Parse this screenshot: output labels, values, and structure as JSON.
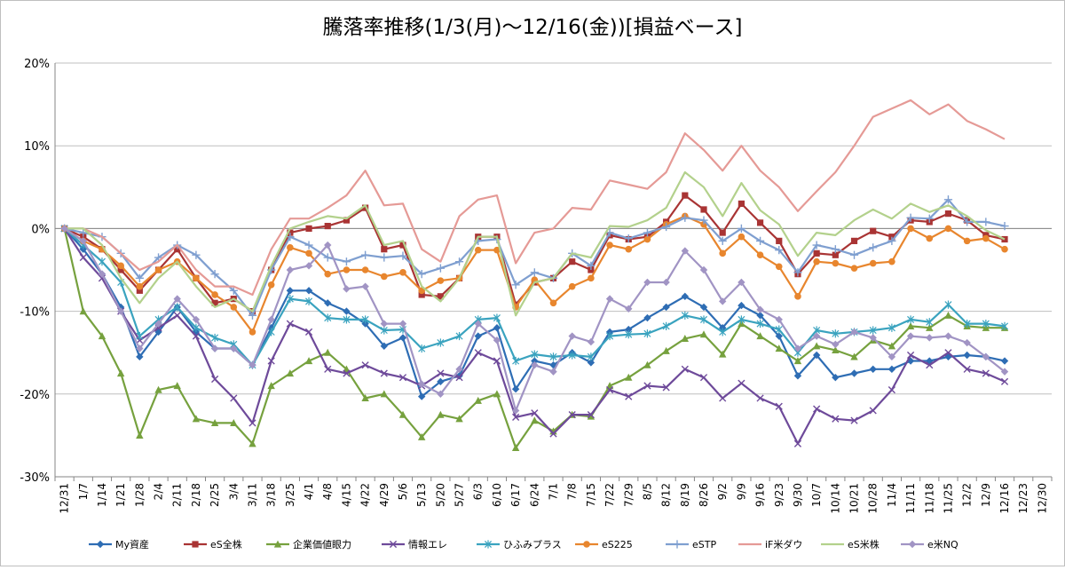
{
  "chart_data": {
    "type": "line",
    "title": "騰落率推移(1/3(月)～12/16(金))[損益ベース]",
    "xlabel": "",
    "ylabel": "",
    "ylim": [
      -30,
      20
    ],
    "yticks": [
      "20%",
      "10%",
      "0%",
      "-10%",
      "-20%",
      "-30%"
    ],
    "ytick_values": [
      20,
      10,
      0,
      -10,
      -20,
      -30
    ],
    "grid": "horizontal",
    "legend_position": "bottom",
    "x_ticks": [
      "12/31",
      "1/7",
      "1/14",
      "1/21",
      "1/28",
      "2/4",
      "2/11",
      "2/18",
      "2/25",
      "3/4",
      "3/11",
      "3/18",
      "3/25",
      "4/1",
      "4/8",
      "4/15",
      "4/22",
      "4/29",
      "5/6",
      "5/13",
      "5/20",
      "5/27",
      "6/3",
      "6/10",
      "6/17",
      "6/24",
      "7/1",
      "7/8",
      "7/15",
      "7/22",
      "7/29",
      "8/5",
      "8/12",
      "8/19",
      "8/26",
      "9/2",
      "9/9",
      "9/16",
      "9/23",
      "9/30",
      "10/7",
      "10/14",
      "10/21",
      "10/28",
      "11/4",
      "11/11",
      "11/18",
      "11/25",
      "12/2",
      "12/9",
      "12/16",
      "12/23",
      "12/30"
    ],
    "series": [
      {
        "name": "My資産",
        "color": "#2E6DB4",
        "marker": "diamond",
        "values": [
          0,
          -2.5,
          -5.5,
          -9.5,
          -15.5,
          -12.5,
          -9.5,
          -12.5,
          -14.5,
          -14.5,
          -16.5,
          -12,
          -7.5,
          -7.5,
          -9,
          -10,
          -11.5,
          -14.2,
          -13.2,
          -20.3,
          -18.5,
          -17.8,
          -13,
          -12,
          -19.4,
          -16,
          -16.5,
          -15,
          -16.2,
          -12.5,
          -12.2,
          -10.8,
          -9.5,
          -8.2,
          -9.5,
          -12,
          -9.3,
          -10.5,
          -13,
          -17.8,
          -15.3,
          -18,
          -17.5,
          -17,
          -17,
          -16,
          -16,
          -15.5,
          -15.3,
          -15.5,
          -16
        ]
      },
      {
        "name": "eS全株",
        "color": "#A93434",
        "marker": "square",
        "values": [
          0,
          -1,
          -2.5,
          -5,
          -7.5,
          -5,
          -2.5,
          -6,
          -9,
          -8.5,
          -10,
          -5,
          -0.5,
          0,
          0.3,
          1,
          2.5,
          -2.5,
          -2,
          -8,
          -8.2,
          -6,
          -1,
          -1,
          -9.2,
          -6.5,
          -6,
          -4,
          -5,
          -0.8,
          -1.3,
          -1,
          0.8,
          4,
          2.3,
          -0.5,
          3,
          0.7,
          -1.5,
          -5.5,
          -3,
          -3.2,
          -1.5,
          -0.3,
          -1,
          1,
          0.8,
          1.8,
          1,
          -0.8,
          -1.3
        ]
      },
      {
        "name": "企業価値眼力",
        "color": "#76A13E",
        "marker": "triangle",
        "values": [
          0,
          -10,
          -13,
          -17.5,
          -25,
          -19.5,
          -19,
          -23,
          -23.5,
          -23.5,
          -26,
          -19,
          -17.5,
          -16,
          -15,
          -17,
          -20.5,
          -20,
          -22.5,
          -25.2,
          -22.5,
          -23,
          -20.8,
          -20,
          -26.5,
          -23.2,
          -24.5,
          -22.5,
          -22.7,
          -19,
          -18,
          -16.5,
          -14.8,
          -13.3,
          -12.8,
          -15.2,
          -11.5,
          -13,
          -14.5,
          -16,
          -14.2,
          -14.7,
          -15.5,
          -13.5,
          -14.2,
          -11.8,
          -12,
          -10.5,
          -11.8,
          -12,
          -12
        ]
      },
      {
        "name": "情報エレ",
        "color": "#6E4A9A",
        "marker": "x",
        "values": [
          0,
          -3.5,
          -6,
          -10,
          -13.5,
          -12,
          -10.5,
          -13,
          -18.2,
          -20.5,
          -23.5,
          -16,
          -11.5,
          -12.5,
          -17,
          -17.5,
          -16.5,
          -17.5,
          -18,
          -19,
          -17.5,
          -18,
          -15,
          -16,
          -22.8,
          -22.3,
          -24.8,
          -22.5,
          -22.5,
          -19.5,
          -20.3,
          -19,
          -19.2,
          -17,
          -18,
          -20.5,
          -18.7,
          -20.5,
          -21.5,
          -26,
          -21.8,
          -23,
          -23.2,
          -22,
          -19.5,
          -15.3,
          -16.5,
          -15,
          -17,
          -17.5,
          -18.5
        ]
      },
      {
        "name": "ひふみプラス",
        "color": "#3AA3BF",
        "marker": "star",
        "values": [
          0,
          -2,
          -4,
          -6.5,
          -13,
          -11,
          -9.5,
          -12,
          -13.2,
          -14,
          -16.5,
          -12.5,
          -8.5,
          -8.8,
          -10.8,
          -11,
          -11,
          -12.3,
          -12.2,
          -14.5,
          -13.8,
          -13,
          -11,
          -10.8,
          -16,
          -15.2,
          -15.5,
          -15.3,
          -15.5,
          -13,
          -12.8,
          -12.7,
          -11.8,
          -10.5,
          -11,
          -12.5,
          -11,
          -11.5,
          -12.2,
          -15,
          -12.3,
          -12.7,
          -12.5,
          -12.3,
          -12,
          -11,
          -11.3,
          -9.2,
          -11.5,
          -11.5,
          -11.8
        ]
      },
      {
        "name": "eS225",
        "color": "#E8862E",
        "marker": "circle",
        "values": [
          0,
          -1.5,
          -2.5,
          -4.5,
          -7,
          -5,
          -4,
          -6,
          -8,
          -9.5,
          -12.5,
          -6.8,
          -2.3,
          -3,
          -5.5,
          -5,
          -5,
          -5.8,
          -5.3,
          -7.5,
          -6.3,
          -6,
          -2.6,
          -2.6,
          -9.5,
          -6.2,
          -9,
          -7,
          -6,
          -2,
          -2.5,
          -1.3,
          0.5,
          1.5,
          0.5,
          -3,
          -1,
          -3.2,
          -4.6,
          -8.2,
          -4,
          -4.2,
          -4.8,
          -4.2,
          -4,
          0,
          -1.2,
          0,
          -1.5,
          -1.2,
          -2.5
        ]
      },
      {
        "name": "eSTP",
        "color": "#7F9FD0",
        "marker": "plus",
        "values": [
          0,
          -0.5,
          -1,
          -3,
          -6,
          -3.5,
          -2,
          -3.2,
          -5.5,
          -7.5,
          -10.5,
          -5,
          -1,
          -2,
          -3.5,
          -4,
          -3.2,
          -3.5,
          -3.3,
          -5.5,
          -4.8,
          -4,
          -1.5,
          -1.3,
          -6.8,
          -5.3,
          -6,
          -3,
          -4.5,
          -0.5,
          -1.2,
          -0.5,
          0.2,
          1.3,
          1,
          -1.5,
          0,
          -1.5,
          -2.6,
          -5.3,
          -2,
          -2.5,
          -3.2,
          -2.3,
          -1.5,
          1.3,
          1.2,
          3.5,
          0.8,
          0.8,
          0.3
        ]
      },
      {
        "name": "iF米ダウ",
        "color": "#E59A96",
        "marker": "none",
        "values": [
          0,
          0,
          -1,
          -3,
          -5,
          -4,
          -2,
          -5,
          -7,
          -7,
          -8,
          -2.5,
          1.2,
          1.2,
          2.5,
          4,
          7,
          2.8,
          3,
          -2.5,
          -4,
          1.5,
          3.5,
          4,
          -4.2,
          -0.5,
          0,
          2.5,
          2.3,
          5.8,
          5.3,
          4.8,
          6.8,
          11.5,
          9.5,
          7,
          10,
          7,
          5,
          2.1,
          4.5,
          6.8,
          10,
          13.5,
          14.5,
          15.5,
          13.8,
          15,
          13,
          12,
          10.8
        ]
      },
      {
        "name": "eS米株",
        "color": "#B3D18C",
        "marker": "none",
        "values": [
          0,
          0,
          -2,
          -6,
          -9,
          -6,
          -4,
          -7,
          -9.5,
          -8.5,
          -10,
          -4.5,
          0,
          0.8,
          1.5,
          1.2,
          2.8,
          -2,
          -1.5,
          -7,
          -8.8,
          -6,
          -1,
          -1,
          -10.5,
          -6.5,
          -6,
          -3,
          -3.5,
          0.3,
          0.2,
          1,
          2.5,
          6.8,
          5,
          1.5,
          5.5,
          2.2,
          0.5,
          -3.3,
          -0.5,
          -0.8,
          1,
          2.3,
          1.2,
          3,
          2,
          2.8,
          1.5,
          -0.2,
          -1.3
        ]
      },
      {
        "name": "e米NQ",
        "color": "#A194C4",
        "marker": "diamond",
        "values": [
          0,
          -1.5,
          -5.5,
          -10,
          -14.5,
          -11.5,
          -8.5,
          -11,
          -14.5,
          -14.5,
          -16.5,
          -11,
          -5,
          -4.5,
          -2,
          -7.3,
          -7,
          -11.5,
          -11.5,
          -18.8,
          -20,
          -17,
          -11.5,
          -13.5,
          -22,
          -16.5,
          -17.3,
          -13,
          -13.7,
          -8.5,
          -9.7,
          -6.5,
          -6.5,
          -2.7,
          -5,
          -8.8,
          -6.5,
          -9.8,
          -11,
          -14.5,
          -13,
          -14,
          -12.5,
          -13.2,
          -15.5,
          -13,
          -13.2,
          -13,
          -13.8,
          -15.5,
          -17.3
        ]
      }
    ]
  }
}
